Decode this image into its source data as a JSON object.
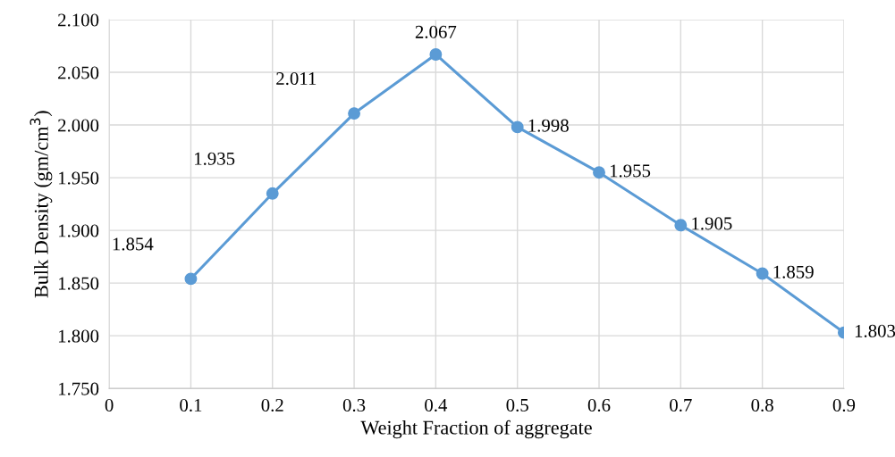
{
  "chart_data": {
    "type": "line",
    "xlabel": "Weight Fraction of aggregate",
    "ylabel": "Bulk Density (gm/cm$^{3}$)",
    "x": [
      0.1,
      0.2,
      0.3,
      0.4,
      0.5,
      0.6,
      0.7,
      0.8,
      0.9
    ],
    "series": [
      {
        "color": "#5b9bd5",
        "values": [
          1.854,
          1.935,
          2.011,
          2.067,
          1.998,
          1.955,
          1.905,
          1.859,
          1.803
        ]
      }
    ],
    "xlim": [
      0,
      0.9
    ],
    "xticks": [
      0,
      0.1,
      0.2,
      0.3,
      0.4,
      0.5,
      0.6,
      0.7,
      0.8,
      0.9
    ],
    "ylim": [
      1.75,
      2.1
    ],
    "yticks": [
      {
        "value": 1.75,
        "label": "1.750"
      },
      {
        "value": 1.8,
        "label": "1.800"
      },
      {
        "value": 1.85,
        "label": "1.850"
      },
      {
        "value": 1.9,
        "label": "1.900"
      },
      {
        "value": 1.95,
        "label": "1.950"
      },
      {
        "value": 2.0,
        "label": "2.000"
      },
      {
        "value": 2.05,
        "label": "2.050"
      },
      {
        "value": 2.1,
        "label": "2.100"
      }
    ],
    "grid": true,
    "marker": "circle",
    "line_style": "solid",
    "data_labels": true
  }
}
